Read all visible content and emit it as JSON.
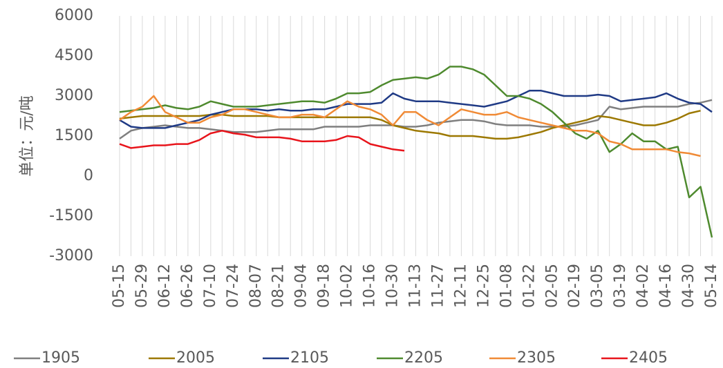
{
  "chart_data": {
    "type": "line",
    "y_label": "单位：元/吨",
    "categories": [
      "05-15",
      null,
      "05-29",
      null,
      "06-12",
      null,
      "06-26",
      null,
      "07-10",
      null,
      "07-24",
      null,
      "08-07",
      null,
      "08-21",
      null,
      "09-04",
      null,
      "09-18",
      null,
      "10-02",
      null,
      "10-16",
      null,
      "10-30",
      null,
      "11-13",
      null,
      "11-27",
      null,
      "12-11",
      null,
      "12-25",
      null,
      "01-08",
      null,
      "01-22",
      null,
      "02-05",
      null,
      "02-19",
      null,
      "03-05",
      null,
      "03-19",
      null,
      "04-02",
      null,
      "04-16",
      null,
      "04-30",
      null,
      "05-14"
    ],
    "ylim": [
      -3000,
      6000
    ],
    "yticks": [
      -3000,
      -1500,
      0,
      1500,
      3000,
      4500,
      6000
    ],
    "grid": "x",
    "legend": "bottom",
    "series": [
      {
        "name": "1905",
        "color": "#7f7f7f",
        "values": [
          1400,
          1700,
          1800,
          1850,
          1900,
          1850,
          1800,
          1800,
          1750,
          1700,
          1650,
          1650,
          1650,
          1700,
          1750,
          1750,
          1750,
          1750,
          1850,
          1850,
          1850,
          1850,
          1900,
          1900,
          1900,
          1850,
          1850,
          1900,
          2000,
          2050,
          2100,
          2100,
          2050,
          1950,
          1900,
          1900,
          1900,
          1850,
          1850,
          1850,
          1900,
          2000,
          2100,
          2600,
          2500,
          2550,
          2600,
          2600,
          2600,
          2600,
          2700,
          2750,
          2850
        ]
      },
      {
        "name": "2005",
        "color": "#9c7800",
        "values": [
          2150,
          2200,
          2250,
          2250,
          2250,
          2250,
          2250,
          2250,
          2300,
          2300,
          2250,
          2250,
          2250,
          2250,
          2200,
          2200,
          2200,
          2200,
          2200,
          2200,
          2200,
          2200,
          2200,
          2100,
          1900,
          1800,
          1700,
          1650,
          1600,
          1500,
          1500,
          1500,
          1450,
          1400,
          1400,
          1450,
          1550,
          1650,
          1800,
          1900,
          2000,
          2100,
          2250,
          2200,
          2100,
          2000,
          1900,
          1900,
          2000,
          2150,
          2350,
          2450,
          null
        ]
      },
      {
        "name": "2105",
        "color": "#1f3a85",
        "values": [
          2100,
          1850,
          1800,
          1800,
          1800,
          1900,
          2000,
          2100,
          2300,
          2400,
          2500,
          2500,
          2500,
          2450,
          2500,
          2450,
          2450,
          2500,
          2500,
          2600,
          2700,
          2700,
          2700,
          2750,
          3100,
          2900,
          2800,
          2800,
          2800,
          2750,
          2700,
          2650,
          2600,
          2700,
          2800,
          3000,
          3200,
          3200,
          3100,
          3000,
          3000,
          3000,
          3050,
          3000,
          2800,
          2850,
          2900,
          2950,
          3100,
          2900,
          2750,
          2700,
          2400
        ]
      },
      {
        "name": "2205",
        "color": "#4e8a2e",
        "values": [
          2400,
          2450,
          2500,
          2550,
          2650,
          2550,
          2500,
          2600,
          2800,
          2700,
          2600,
          2600,
          2600,
          2650,
          2700,
          2750,
          2800,
          2800,
          2750,
          2900,
          3100,
          3100,
          3150,
          3400,
          3600,
          3650,
          3700,
          3650,
          3800,
          4100,
          4100,
          4000,
          3800,
          3400,
          3000,
          3000,
          2900,
          2700,
          2400,
          2000,
          1600,
          1400,
          1700,
          900,
          1200,
          1600,
          1300,
          1300,
          1000,
          1100,
          -800,
          -400,
          -2300
        ]
      },
      {
        "name": "2305",
        "color": "#f08a35",
        "values": [
          2100,
          2400,
          2600,
          3000,
          2400,
          2200,
          2000,
          2000,
          2200,
          2300,
          2500,
          2500,
          2400,
          2300,
          2200,
          2200,
          2300,
          2300,
          2200,
          2500,
          2800,
          2600,
          2500,
          2300,
          1900,
          2400,
          2400,
          2100,
          1900,
          2200,
          2500,
          2400,
          2300,
          2300,
          2400,
          2200,
          2100,
          2000,
          1900,
          1800,
          1700,
          1700,
          1600,
          1300,
          1200,
          1000,
          1000,
          1000,
          1000,
          900,
          850,
          750,
          null
        ]
      },
      {
        "name": "2405",
        "color": "#e8141b",
        "values": [
          1200,
          1050,
          1100,
          1150,
          1150,
          1200,
          1200,
          1350,
          1600,
          1700,
          1600,
          1550,
          1450,
          1450,
          1450,
          1400,
          1300,
          1300,
          1300,
          1350,
          1500,
          1450,
          1200,
          1100,
          1000,
          950,
          null,
          null,
          null,
          null,
          null,
          null,
          null,
          null,
          null,
          null,
          null,
          null,
          null,
          null,
          null,
          null,
          null,
          null,
          null,
          null,
          null,
          null,
          null,
          null,
          null,
          null,
          null
        ]
      }
    ]
  }
}
